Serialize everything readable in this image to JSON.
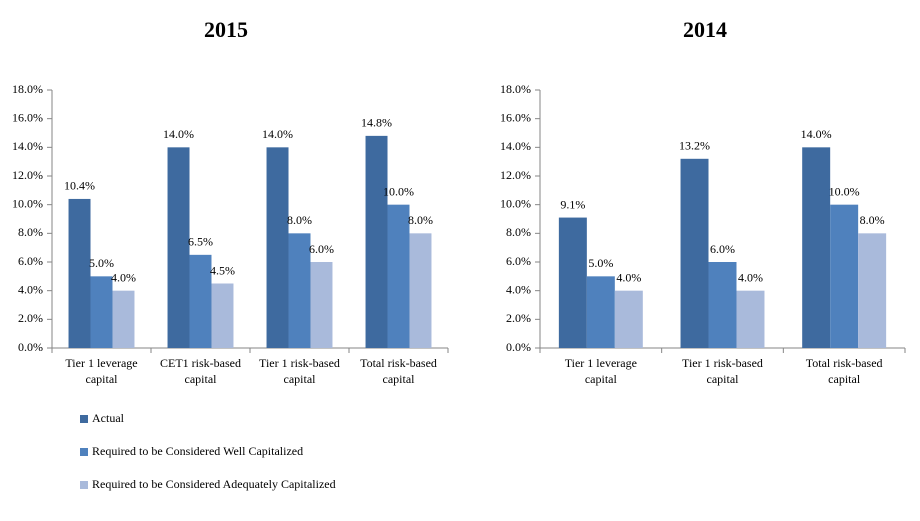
{
  "chart_data": [
    {
      "type": "bar",
      "title": "2015",
      "categories": [
        "Tier 1 leverage capital",
        "CET1 risk-based capital",
        "Tier 1 risk-based capital",
        "Total risk-based capital"
      ],
      "series": [
        {
          "name": "Actual",
          "color": "#3e6a9f",
          "values": [
            10.4,
            14.0,
            14.0,
            14.8
          ],
          "value_labels": [
            "10.4%",
            "14.0%",
            "14.0%",
            "14.8%"
          ]
        },
        {
          "name": "Required to be Considered Well Capitalized",
          "color": "#4f81bd",
          "values": [
            5.0,
            6.5,
            8.0,
            10.0
          ],
          "value_labels": [
            "5.0%",
            "6.5%",
            "8.0%",
            "10.0%"
          ]
        },
        {
          "name": "Required to be Considered Adequately Capitalized",
          "color": "#a9badb",
          "values": [
            4.0,
            4.5,
            6.0,
            8.0
          ],
          "value_labels": [
            "4.0%",
            "4.5%",
            "6.0%",
            "8.0%"
          ]
        }
      ],
      "ylim": [
        0,
        18
      ],
      "yticks": [
        {
          "value": 0,
          "label": "0.0%"
        },
        {
          "value": 2,
          "label": "2.0%"
        },
        {
          "value": 4,
          "label": "4.0%"
        },
        {
          "value": 6,
          "label": "6.0%"
        },
        {
          "value": 8,
          "label": "8.0%"
        },
        {
          "value": 10,
          "label": "10.0%"
        },
        {
          "value": 12,
          "label": "12.0%"
        },
        {
          "value": 14,
          "label": "14.0%"
        },
        {
          "value": 16,
          "label": "16.0%"
        },
        {
          "value": 18,
          "label": "18.0%"
        }
      ],
      "grid": false,
      "legend": "bottom"
    },
    {
      "type": "bar",
      "title": "2014",
      "categories": [
        "Tier 1 leverage capital",
        "Tier 1 risk-based capital",
        "Total risk-based capital"
      ],
      "series": [
        {
          "color": "#3e6a9f",
          "values": [
            9.1,
            13.2,
            14.0
          ],
          "value_labels": [
            "9.1%",
            "13.2%",
            "14.0%"
          ]
        },
        {
          "color": "#4f81bd",
          "values": [
            5.0,
            6.0,
            10.0
          ],
          "value_labels": [
            "5.0%",
            "6.0%",
            "10.0%"
          ]
        },
        {
          "color": "#a9badb",
          "values": [
            4.0,
            4.0,
            8.0
          ],
          "value_labels": [
            "4.0%",
            "4.0%",
            "8.0%"
          ]
        }
      ],
      "ylim": [
        0,
        18
      ],
      "yticks": [
        {
          "value": 0,
          "label": "0.0%"
        },
        {
          "value": 2,
          "label": "2.0%"
        },
        {
          "value": 4,
          "label": "4.0%"
        },
        {
          "value": 6,
          "label": "6.0%"
        },
        {
          "value": 8,
          "label": "8.0%"
        },
        {
          "value": 10,
          "label": "10.0%"
        },
        {
          "value": 12,
          "label": "12.0%"
        },
        {
          "value": 14,
          "label": "14.0%"
        },
        {
          "value": 16,
          "label": "16.0%"
        },
        {
          "value": 18,
          "label": "18.0%"
        }
      ],
      "grid": false
    }
  ]
}
